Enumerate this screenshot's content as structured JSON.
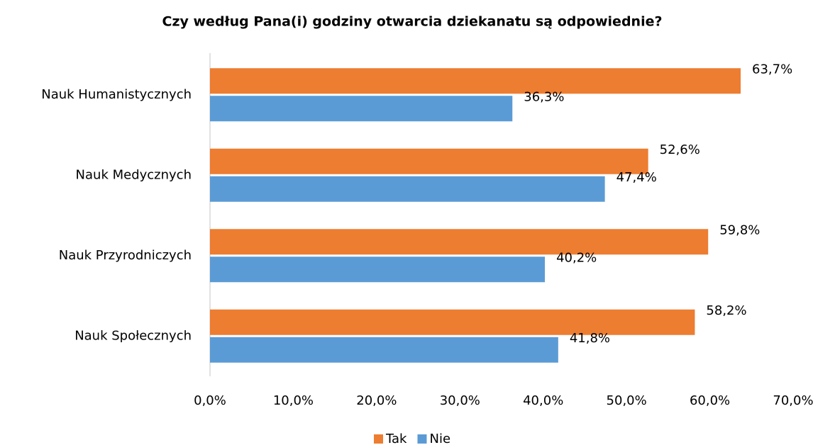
{
  "chart_data": {
    "type": "bar",
    "orientation": "horizontal",
    "title": "Czy według Pana(i) godziny otwarcia dziekanatu są odpowiednie?",
    "categories": [
      "Nauk Humanistycznych",
      "Nauk Medycznych",
      "Nauk Przyrodniczych",
      "Nauk Społecznych"
    ],
    "series": [
      {
        "name": "Tak",
        "color": "#ed7d31",
        "values": [
          63.7,
          52.6,
          59.8,
          58.2
        ],
        "value_labels": [
          "63,7%",
          "52,6%",
          "59,8%",
          "58,2%"
        ]
      },
      {
        "name": "Nie",
        "color": "#5b9bd5",
        "values": [
          36.3,
          47.4,
          40.2,
          41.8
        ],
        "value_labels": [
          "36,3%",
          "47,4%",
          "40,2%",
          "41,8%"
        ]
      }
    ],
    "xlim": [
      0,
      70
    ],
    "xticks": [
      {
        "value": 0,
        "label": "0,0%"
      },
      {
        "value": 10,
        "label": "10,0%"
      },
      {
        "value": 20,
        "label": "20,0%"
      },
      {
        "value": 30,
        "label": "30,0%"
      },
      {
        "value": 40,
        "label": "40,0%"
      },
      {
        "value": 50,
        "label": "50,0%"
      },
      {
        "value": 60,
        "label": "60,0%"
      },
      {
        "value": 70,
        "label": "70,0%"
      }
    ],
    "grid": false,
    "legend": "bottom"
  }
}
